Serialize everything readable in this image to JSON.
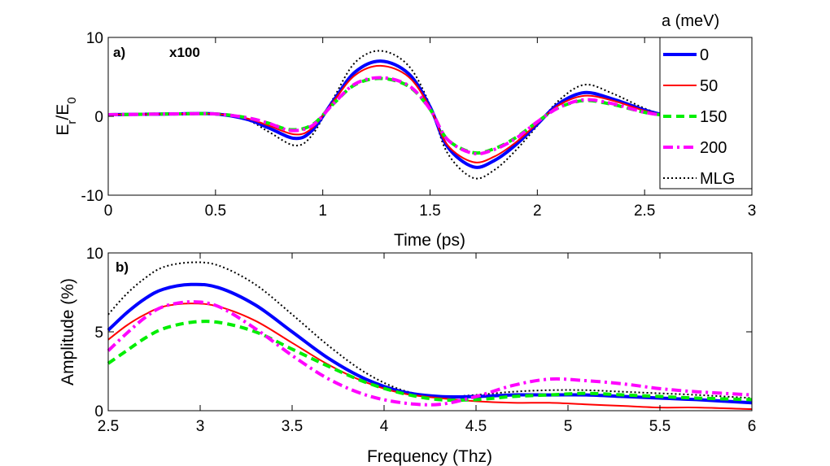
{
  "chart_data": [
    {
      "type": "line",
      "panel_label": "a)",
      "annotation": "x100",
      "xlabel": "Time (ps)",
      "ylabel_main": "E",
      "ylabel_sub1": "r",
      "ylabel_mid": "/E",
      "ylabel_sub2": "0",
      "xlim": [
        0,
        3
      ],
      "ylim": [
        -10,
        10
      ],
      "xticks": [
        "0",
        "0.5",
        "1",
        "1.5",
        "2",
        "2.5",
        "3"
      ],
      "xtick_values": [
        0,
        0.5,
        1,
        1.5,
        2,
        2.5,
        3
      ],
      "yticks": [
        "-10",
        "0",
        "10"
      ],
      "ytick_values": [
        -10,
        0,
        10
      ],
      "legend_title": "a (meV)",
      "series": [
        {
          "name": "0",
          "color": "#0000ff",
          "style": "solid",
          "width": 4,
          "x": [
            0,
            0.3,
            0.5,
            0.65,
            0.75,
            0.87,
            0.95,
            1.05,
            1.15,
            1.27,
            1.4,
            1.5,
            1.58,
            1.7,
            1.8,
            1.9,
            2.0,
            2.1,
            2.22,
            2.35,
            2.5,
            2.6
          ],
          "y": [
            0.2,
            0.3,
            0.3,
            -0.4,
            -1.5,
            -2.8,
            -1.8,
            2.0,
            5.6,
            7.0,
            5.4,
            1.2,
            -3.8,
            -6.4,
            -5.6,
            -3.6,
            -1.0,
            1.6,
            3.0,
            2.2,
            0.8,
            0.1
          ]
        },
        {
          "name": "50",
          "color": "#ff0000",
          "style": "solid",
          "width": 2,
          "x": [
            0,
            0.3,
            0.5,
            0.65,
            0.75,
            0.87,
            0.95,
            1.05,
            1.15,
            1.27,
            1.4,
            1.5,
            1.58,
            1.7,
            1.8,
            1.9,
            2.0,
            2.1,
            2.22,
            2.35,
            2.5,
            2.6
          ],
          "y": [
            0.2,
            0.3,
            0.3,
            -0.3,
            -1.2,
            -2.3,
            -1.5,
            1.9,
            5.2,
            6.4,
            5.0,
            1.1,
            -3.6,
            -5.8,
            -5.1,
            -3.3,
            -0.9,
            1.4,
            2.6,
            2.0,
            0.7,
            0.1
          ]
        },
        {
          "name": "150",
          "color": "#00ee00",
          "style": "dash",
          "width": 4,
          "x": [
            0,
            0.3,
            0.5,
            0.65,
            0.75,
            0.85,
            0.95,
            1.05,
            1.15,
            1.27,
            1.4,
            1.5,
            1.58,
            1.7,
            1.8,
            1.9,
            2.0,
            2.1,
            2.22,
            2.35,
            2.5,
            2.6
          ],
          "y": [
            0.2,
            0.3,
            0.3,
            -0.2,
            -0.9,
            -1.7,
            -1.1,
            1.6,
            4.0,
            4.8,
            3.8,
            0.9,
            -2.9,
            -4.6,
            -4.1,
            -2.7,
            -0.7,
            1.1,
            2.0,
            1.5,
            0.5,
            0.1
          ]
        },
        {
          "name": "200",
          "color": "#ff00ff",
          "style": "dashdot",
          "width": 4,
          "x": [
            0,
            0.3,
            0.5,
            0.65,
            0.75,
            0.85,
            0.95,
            1.05,
            1.15,
            1.27,
            1.4,
            1.5,
            1.58,
            1.7,
            1.8,
            1.9,
            2.0,
            2.1,
            2.22,
            2.35,
            2.5,
            2.6
          ],
          "y": [
            0.2,
            0.3,
            0.3,
            -0.2,
            -0.9,
            -1.8,
            -1.2,
            1.6,
            4.1,
            4.9,
            3.9,
            0.9,
            -2.9,
            -4.7,
            -4.2,
            -2.8,
            -0.7,
            1.1,
            2.1,
            1.6,
            0.5,
            0.1
          ]
        },
        {
          "name": "MLG",
          "color": "#000000",
          "style": "dot",
          "width": 2,
          "x": [
            0,
            0.3,
            0.5,
            0.65,
            0.75,
            0.87,
            0.95,
            1.05,
            1.15,
            1.27,
            1.4,
            1.5,
            1.58,
            1.7,
            1.8,
            1.9,
            2.0,
            2.1,
            2.22,
            2.35,
            2.5,
            2.6
          ],
          "y": [
            0.2,
            0.3,
            0.3,
            -0.5,
            -2.0,
            -3.7,
            -2.4,
            2.3,
            6.8,
            8.3,
            6.4,
            1.4,
            -4.6,
            -7.8,
            -6.8,
            -4.3,
            -1.2,
            2.0,
            4.0,
            2.9,
            1.0,
            0.1
          ]
        }
      ]
    },
    {
      "type": "line",
      "panel_label": "b)",
      "xlabel": "Frequency (Thz)",
      "ylabel": "Amplitude (%)",
      "xlim": [
        2.5,
        6
      ],
      "ylim": [
        0,
        10
      ],
      "xticks": [
        "2.5",
        "3",
        "3.5",
        "4",
        "4.5",
        "5",
        "5.5",
        "6"
      ],
      "xtick_values": [
        2.5,
        3,
        3.5,
        4,
        4.5,
        5,
        5.5,
        6
      ],
      "yticks": [
        "0",
        "5",
        "10"
      ],
      "ytick_values": [
        0,
        5,
        10
      ],
      "series": [
        {
          "name": "0",
          "color": "#0000ff",
          "style": "solid",
          "width": 4,
          "x": [
            2.5,
            2.6,
            2.7,
            2.8,
            2.95,
            3.1,
            3.3,
            3.5,
            3.7,
            3.9,
            4.1,
            4.3,
            4.5,
            4.7,
            4.9,
            5.1,
            5.3,
            5.5,
            5.7,
            6.0
          ],
          "y": [
            5.1,
            6.2,
            7.1,
            7.7,
            8.0,
            7.8,
            6.7,
            5.0,
            3.3,
            2.0,
            1.2,
            0.9,
            0.9,
            1.0,
            1.0,
            1.0,
            0.9,
            0.8,
            0.7,
            0.5
          ]
        },
        {
          "name": "50",
          "color": "#ff0000",
          "style": "solid",
          "width": 2,
          "x": [
            2.5,
            2.6,
            2.7,
            2.8,
            2.95,
            3.1,
            3.3,
            3.5,
            3.7,
            3.9,
            4.1,
            4.3,
            4.5,
            4.7,
            4.9,
            5.1,
            5.3,
            5.5,
            5.7,
            6.0
          ],
          "y": [
            4.5,
            5.4,
            6.1,
            6.6,
            6.8,
            6.6,
            5.7,
            4.3,
            2.9,
            1.8,
            1.1,
            0.8,
            0.6,
            0.5,
            0.5,
            0.4,
            0.3,
            0.2,
            0.2,
            0.1
          ]
        },
        {
          "name": "150",
          "color": "#00ee00",
          "style": "dash",
          "width": 4,
          "x": [
            2.5,
            2.6,
            2.7,
            2.8,
            2.95,
            3.1,
            3.3,
            3.5,
            3.7,
            3.9,
            4.1,
            4.3,
            4.5,
            4.7,
            4.9,
            5.1,
            5.3,
            5.5,
            5.7,
            6.0
          ],
          "y": [
            3.0,
            3.8,
            4.6,
            5.2,
            5.6,
            5.6,
            5.0,
            3.9,
            2.8,
            1.8,
            1.1,
            0.7,
            0.7,
            0.9,
            1.0,
            1.1,
            1.0,
            0.9,
            0.8,
            0.7
          ]
        },
        {
          "name": "200",
          "color": "#ff00ff",
          "style": "dashdot",
          "width": 4,
          "x": [
            2.5,
            2.6,
            2.7,
            2.8,
            2.95,
            3.1,
            3.3,
            3.5,
            3.7,
            3.9,
            4.1,
            4.3,
            4.5,
            4.7,
            4.9,
            5.1,
            5.3,
            5.5,
            5.7,
            6.0
          ],
          "y": [
            3.8,
            4.9,
            5.9,
            6.6,
            6.9,
            6.6,
            5.2,
            3.5,
            2.0,
            1.0,
            0.5,
            0.4,
            0.9,
            1.6,
            2.0,
            1.9,
            1.7,
            1.4,
            1.2,
            1.0
          ]
        },
        {
          "name": "MLG",
          "color": "#000000",
          "style": "dot",
          "width": 2,
          "x": [
            2.5,
            2.6,
            2.7,
            2.8,
            2.95,
            3.1,
            3.3,
            3.5,
            3.7,
            3.9,
            4.1,
            4.3,
            4.5,
            4.7,
            4.9,
            5.1,
            5.3,
            5.5,
            5.7,
            6.0
          ],
          "y": [
            6.1,
            7.4,
            8.4,
            9.1,
            9.4,
            9.2,
            8.0,
            6.1,
            4.1,
            2.4,
            1.3,
            0.9,
            1.0,
            1.2,
            1.3,
            1.3,
            1.2,
            1.1,
            1.0,
            0.8
          ]
        }
      ]
    }
  ]
}
